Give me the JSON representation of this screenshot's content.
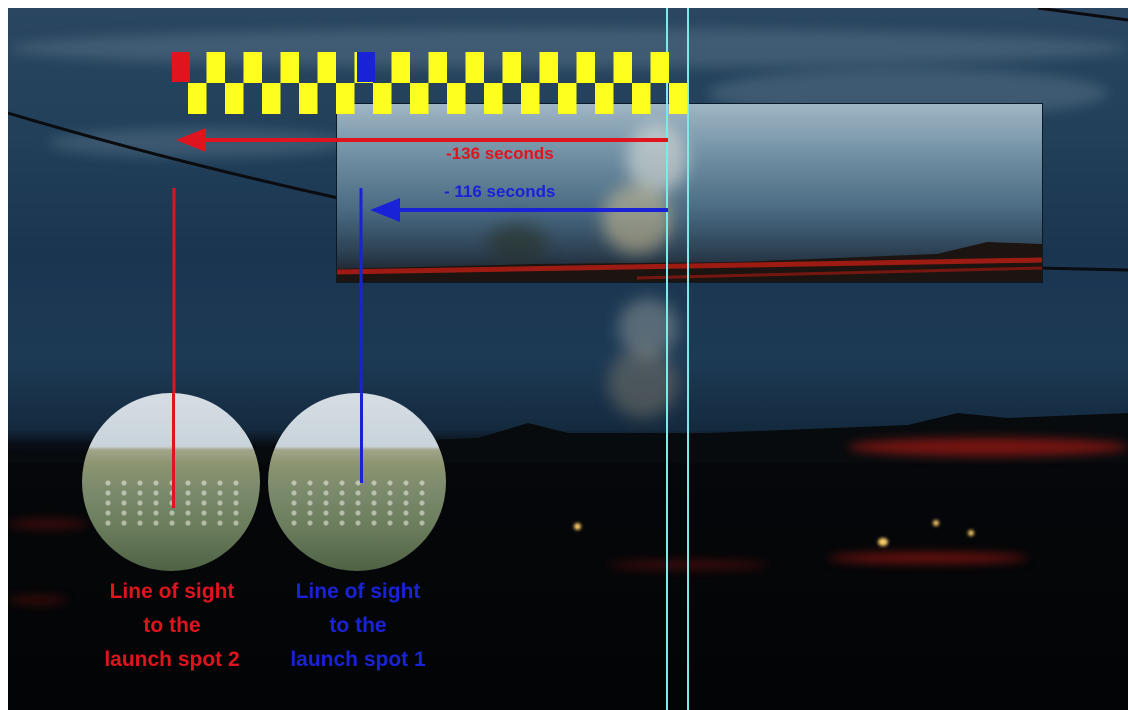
{
  "annotations": {
    "red_arrow_label": "-136 seconds",
    "blue_arrow_label": "- 116 seconds"
  },
  "captions": {
    "spot2": [
      "Line of sight",
      "to the",
      "launch spot 2"
    ],
    "spot1": [
      "Line of sight",
      "to the",
      "launch spot 1"
    ]
  },
  "colors": {
    "red": "#e0141e",
    "blue": "#1a22d8",
    "checker_yellow": "#ffff1e",
    "cyan_line": "#7fe8e8"
  }
}
